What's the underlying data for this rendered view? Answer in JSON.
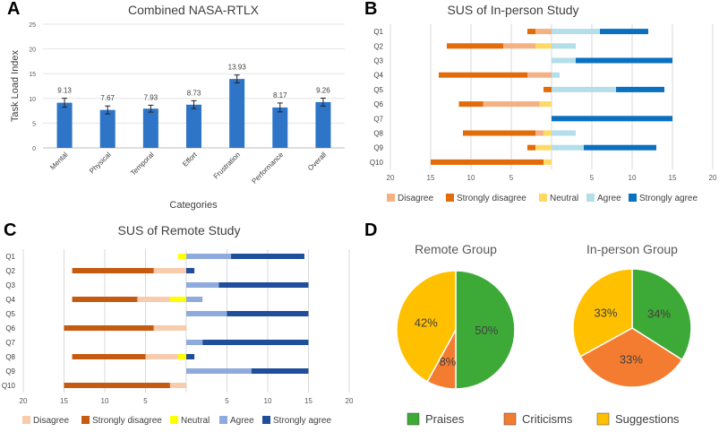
{
  "panels": {
    "A": "A",
    "B": "B",
    "C": "C",
    "D": "D"
  },
  "chart_data": [
    {
      "id": "A",
      "type": "bar",
      "title": "Combined NASA-RTLX",
      "xlabel": "Categories",
      "ylabel": "Task Load Index",
      "ylim": [
        0,
        25
      ],
      "yticks": [
        0,
        5,
        10,
        15,
        20,
        25
      ],
      "categories": [
        "Mental",
        "Physical",
        "Temporal",
        "Effort",
        "Frustration",
        "Performance",
        "Overall"
      ],
      "values": [
        9.13,
        7.67,
        7.93,
        8.73,
        13.93,
        8.17,
        9.26
      ],
      "value_labels": [
        "9.13",
        "7.67",
        "7.93",
        "8.73",
        "13.93",
        "8.17",
        "9.26"
      ],
      "errors": [
        0.9,
        0.8,
        0.7,
        0.8,
        0.8,
        0.9,
        0.8
      ],
      "color": "#2E75C8"
    },
    {
      "id": "B",
      "type": "bar",
      "orientation": "horizontal-diverging",
      "title": "SUS of In-person Study",
      "categories": [
        "Q1",
        "Q2",
        "Q3",
        "Q4",
        "Q5",
        "Q6",
        "Q7",
        "Q8",
        "Q9",
        "Q10"
      ],
      "xticks": [
        "20",
        "15",
        "10",
        "5",
        "",
        "5",
        "10",
        "15",
        "20"
      ],
      "xlim": [
        -20,
        20
      ],
      "legend": [
        "Disagree",
        "Strongly disagree",
        "Neutral",
        "Agree",
        "Strongly agree"
      ],
      "series": [
        {
          "name": "Neutral",
          "color": "#FFD966",
          "values": [
            0,
            2,
            0,
            0,
            0,
            1.5,
            0,
            1,
            2,
            1
          ]
        },
        {
          "name": "Disagree",
          "color": "#F4B183",
          "values": [
            2,
            4,
            0,
            3,
            0,
            7,
            0,
            1,
            0,
            0
          ]
        },
        {
          "name": "Strongly disagree",
          "color": "#E26B0A",
          "values": [
            1,
            7,
            0,
            11,
            1,
            3,
            0,
            9,
            1,
            14
          ]
        },
        {
          "name": "Agree",
          "color": "#B4DEEA",
          "values": [
            6,
            3,
            3,
            1,
            8,
            0,
            0,
            3,
            4,
            0
          ]
        },
        {
          "name": "Strongly agree",
          "color": "#0A70C0",
          "values": [
            6,
            0,
            12,
            0,
            6,
            0,
            15,
            0,
            9,
            0
          ]
        }
      ]
    },
    {
      "id": "C",
      "type": "bar",
      "orientation": "horizontal-diverging",
      "title": "SUS of Remote Study",
      "categories": [
        "Q1",
        "Q2",
        "Q3",
        "Q4",
        "Q5",
        "Q6",
        "Q7",
        "Q8",
        "Q9",
        "Q10"
      ],
      "xticks": [
        "20",
        "15",
        "10",
        "5",
        "",
        "5",
        "10",
        "15",
        "20"
      ],
      "xlim": [
        -20,
        20
      ],
      "legend": [
        "Disagree",
        "Strongly disagree",
        "Neutral",
        "Agree",
        "Strongly agree"
      ],
      "series": [
        {
          "name": "Neutral",
          "color": "#FFFF00",
          "values": [
            1,
            0,
            0,
            2,
            0,
            0,
            0,
            1,
            0,
            0
          ]
        },
        {
          "name": "Disagree",
          "color": "#F8CBAD",
          "values": [
            0,
            4,
            0,
            4,
            0,
            4,
            0,
            4,
            0,
            2
          ]
        },
        {
          "name": "Strongly disagree",
          "color": "#C55A11",
          "values": [
            0,
            10,
            0,
            8,
            0,
            11,
            0,
            9,
            0,
            13
          ]
        },
        {
          "name": "Agree",
          "color": "#8FAADC",
          "values": [
            5.5,
            0,
            4,
            2,
            5,
            0,
            2,
            0,
            8,
            0
          ]
        },
        {
          "name": "Strongly agree",
          "color": "#1F4E9B",
          "values": [
            9,
            1,
            11,
            0,
            10,
            0,
            13,
            1,
            7,
            0
          ]
        }
      ]
    },
    {
      "id": "D",
      "type": "pie",
      "legend": [
        "Praises",
        "Criticisms",
        "Suggestions"
      ],
      "colors": [
        "#3DAA37",
        "#F47C30",
        "#FFC000"
      ],
      "pies": [
        {
          "title": "Remote Group",
          "values": [
            50,
            8,
            42
          ],
          "labels": [
            "50%",
            "8%",
            "42%"
          ]
        },
        {
          "title": "In-person Group",
          "values": [
            34,
            33,
            33
          ],
          "labels": [
            "34%",
            "33%",
            "33%"
          ]
        }
      ]
    }
  ]
}
